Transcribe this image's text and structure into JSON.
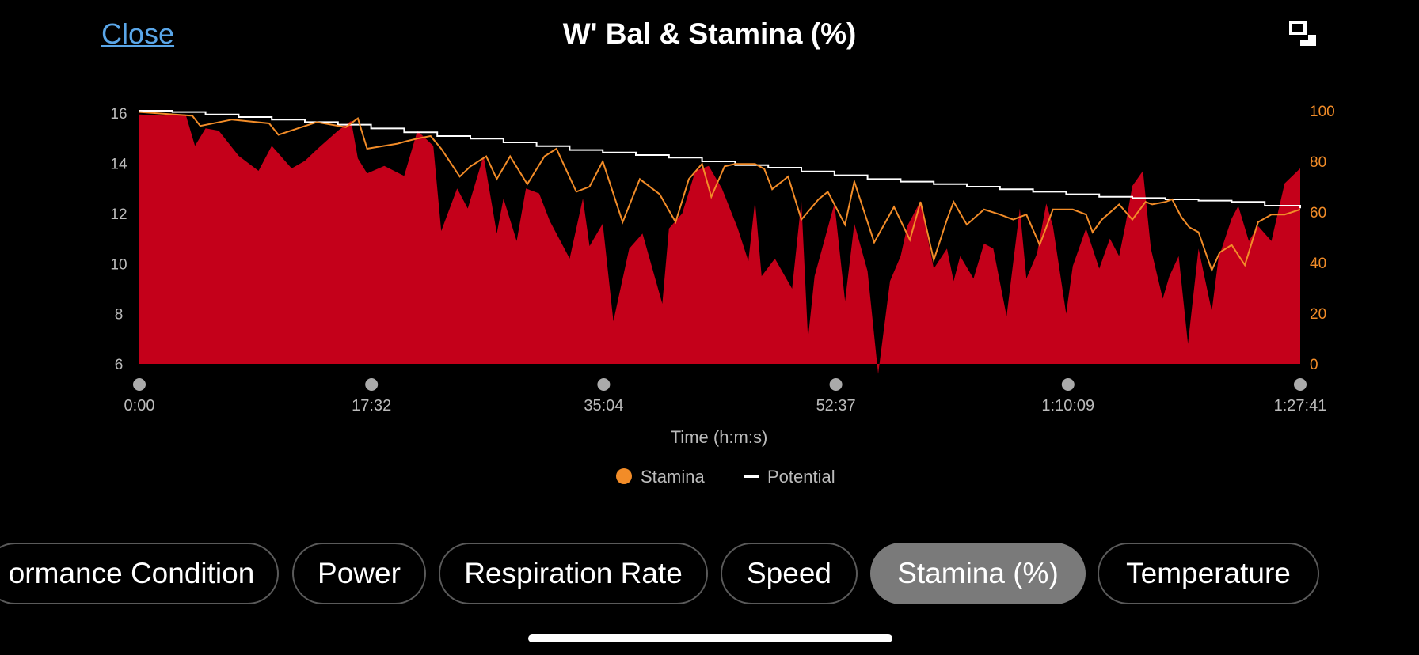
{
  "header": {
    "close_label": "Close",
    "title": "W' Bal & Stamina (%)",
    "expand_icon": "expand-icon"
  },
  "tabs": [
    {
      "label": "ormance Condition",
      "active": false
    },
    {
      "label": "Power",
      "active": false
    },
    {
      "label": "Respiration Rate",
      "active": false
    },
    {
      "label": "Speed",
      "active": false
    },
    {
      "label": "Stamina (%)",
      "active": true
    },
    {
      "label": "Temperature",
      "active": false
    }
  ],
  "chart_data": {
    "type": "area",
    "xlabel": "Time (h:m:s)",
    "x_tick_labels": [
      "0:00",
      "17:32",
      "35:04",
      "52:37",
      "1:10:09",
      "1:27:41"
    ],
    "x_range_min": [
      0,
      87.68
    ],
    "y_left_ticks": [
      6,
      8,
      10,
      12,
      14,
      16
    ],
    "y_left_range": [
      6,
      16.1
    ],
    "y_right_ticks": [
      0,
      20,
      40,
      60,
      80,
      100
    ],
    "y_right_range": [
      0,
      100
    ],
    "legend": [
      {
        "name": "Stamina",
        "color": "#f28c28",
        "marker": "dot"
      },
      {
        "name": "Potential",
        "color": "#ffffff",
        "marker": "line"
      }
    ],
    "legend_position": "bottom-center",
    "colors": {
      "wbal_fill": "#c4001a",
      "stamina": "#f28c28",
      "potential": "#ffffff",
      "tick_text": "#bbbbbb",
      "right_tick_text": "#f28c28"
    },
    "series": [
      {
        "axis": "left",
        "color": "#c4001a",
        "x": [
          0,
          1.8,
          3.5,
          4.2,
          5,
          6,
          7.5,
          9,
          10,
          11.5,
          12.5,
          13.5,
          15,
          16,
          16.5,
          17.2,
          18.5,
          20,
          21,
          22.2,
          22.8,
          24,
          24.8,
          26,
          27,
          27.5,
          28.5,
          29.2,
          30.2,
          31,
          32.5,
          33.5,
          34,
          35,
          35.8,
          37,
          38,
          39.5,
          40,
          41,
          42,
          43,
          44,
          45.2,
          46,
          46.5,
          47,
          48,
          49.3,
          50,
          50.5,
          51,
          52.5,
          53.3,
          54,
          55,
          55.8,
          56.7,
          57.5,
          58,
          59,
          60,
          61,
          61.5,
          62,
          63,
          63.8,
          64.5,
          65.5,
          66.5,
          67,
          67.8,
          68.5,
          69,
          70,
          70.5,
          71.5,
          72.5,
          73.3,
          74,
          74.5,
          75,
          75.8,
          76.4,
          77.3,
          77.8,
          78.5,
          79.2,
          80,
          81,
          81.5,
          82.5,
          83,
          83.8,
          84.5,
          85.5,
          86.5,
          87.68
        ],
        "y": [
          15.95,
          15.9,
          15.95,
          14.7,
          15.4,
          15.3,
          14.3,
          13.7,
          14.7,
          13.8,
          14.1,
          14.6,
          15.3,
          15.7,
          14.2,
          13.6,
          13.9,
          13.5,
          15.3,
          14.7,
          11.3,
          13.0,
          12.2,
          14.3,
          11.2,
          12.6,
          10.9,
          13.0,
          12.8,
          11.7,
          10.2,
          12.6,
          10.7,
          11.6,
          7.7,
          10.6,
          11.2,
          8.4,
          11.4,
          12.0,
          13.7,
          13.9,
          13.0,
          11.4,
          10.1,
          12.5,
          9.5,
          10.2,
          9.0,
          12.5,
          7.0,
          9.5,
          12.4,
          8.5,
          11.6,
          9.7,
          5.6,
          9.3,
          10.3,
          11.5,
          12.5,
          9.8,
          10.6,
          9.3,
          10.3,
          9.4,
          10.8,
          10.6,
          7.9,
          12.2,
          9.4,
          10.4,
          12.4,
          11.5,
          8.0,
          9.9,
          11.4,
          9.8,
          11.0,
          10.3,
          11.6,
          13.1,
          13.7,
          10.6,
          8.6,
          9.5,
          10.3,
          6.8,
          10.6,
          8.1,
          10.2,
          11.8,
          12.3,
          10.9,
          11.5,
          10.9,
          13.2,
          13.8
        ]
      },
      {
        "name": "Stamina",
        "axis": "right",
        "color": "#f28c28",
        "x": [
          0,
          4,
          4.6,
          7,
          9.8,
          10.5,
          13.4,
          15.6,
          16.5,
          17.2,
          19.5,
          20.2,
          21,
          22,
          22.8,
          24.2,
          25,
          26.2,
          27,
          28,
          29.3,
          30.6,
          31.5,
          33,
          34,
          35,
          36.5,
          37.8,
          39.3,
          40.5,
          41.5,
          42.5,
          43.2,
          44.2,
          45,
          46.5,
          47.2,
          47.8,
          49,
          50,
          51.3,
          52,
          53.3,
          54,
          55.5,
          57,
          58.2,
          59,
          60,
          61,
          61.5,
          62.5,
          63.8,
          65,
          66,
          67,
          68,
          69,
          70.5,
          71.5,
          72,
          72.7,
          74,
          75,
          76,
          76.5,
          77.5,
          78,
          78.7,
          79.3,
          80,
          81,
          81.6,
          82.5,
          83.5,
          84.5,
          85.5,
          86.5,
          87.68
        ],
        "y": [
          99.5,
          98,
          94,
          96.5,
          95,
          90.5,
          95.5,
          93.5,
          97,
          85,
          87,
          88,
          89,
          90,
          85,
          74,
          78,
          82,
          73,
          82,
          71,
          82,
          85,
          68,
          70,
          80,
          56,
          73,
          67,
          56,
          73,
          79,
          66,
          78,
          79,
          79,
          77,
          69,
          74,
          57,
          65,
          68,
          55,
          72,
          48,
          62,
          49,
          64,
          41,
          57,
          64,
          55,
          61,
          59,
          57,
          59,
          47,
          61,
          61,
          59,
          52,
          57,
          63,
          57,
          64,
          63,
          64,
          65,
          58,
          54,
          52,
          37,
          44,
          47,
          39,
          56,
          59,
          59,
          61
        ]
      },
      {
        "name": "Potential",
        "axis": "right",
        "color": "#ffffff",
        "x": [
          0,
          2.5,
          5,
          7.5,
          10,
          12.5,
          15,
          17.5,
          20,
          22.5,
          25,
          27.5,
          30,
          32.5,
          35,
          37.5,
          40,
          42.5,
          45,
          47.5,
          50,
          52.5,
          55,
          57.5,
          60,
          62.5,
          65,
          67.5,
          70,
          72.5,
          75,
          77.5,
          80,
          82.5,
          85,
          87.68
        ],
        "y": [
          100,
          99.5,
          98.5,
          97.5,
          96.5,
          95.5,
          94.5,
          93,
          91.5,
          90,
          89,
          87.5,
          86,
          84.5,
          83.5,
          82.5,
          81.5,
          80,
          78.5,
          77.5,
          76,
          74.5,
          73,
          72,
          71,
          70,
          69,
          68,
          67,
          66,
          65.5,
          65,
          64.5,
          64,
          62.5,
          61.5
        ]
      }
    ]
  }
}
